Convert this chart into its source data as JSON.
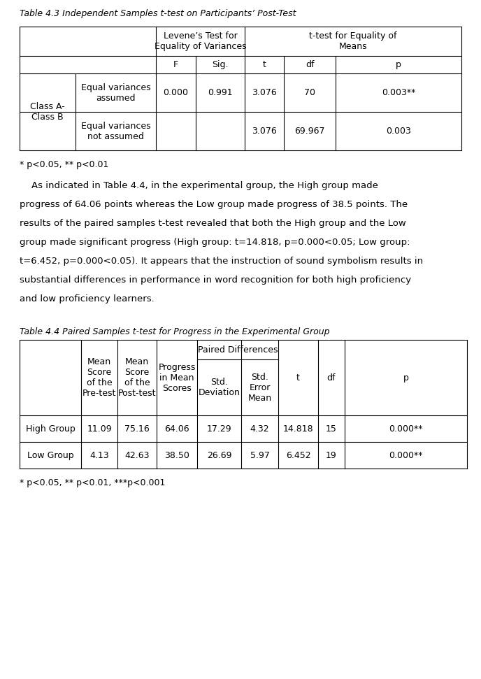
{
  "title1": "Table 4.3 Independent Samples t-test on Participants’ Post-Test",
  "table1_note": "* p<0.05, ** p<0.01",
  "para_lines": [
    "    As indicated in Table 4.4, in the experimental group, the High group made",
    "progress of 64.06 points whereas the Low group made progress of 38.5 points. The",
    "results of the paired samples t-test revealed that both the High group and the Low",
    "group made significant progress (High group: t=14.818, p=0.000<0.05; Low group:",
    "t=6.452, p=0.000<0.05). It appears that the instruction of sound symbolism results in",
    "substantial differences in performance in word recognition for both high proficiency",
    "and low proficiency learners."
  ],
  "title2": "Table 4.4 Paired Samples t-test for Progress in the Experimental Group",
  "table2_note": "* p<0.05, ** p<0.01, ***p<0.001",
  "bg_color": "#ffffff"
}
